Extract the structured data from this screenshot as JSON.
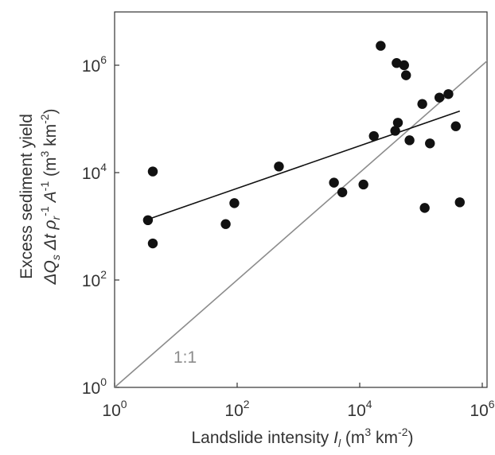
{
  "chart_data": {
    "type": "scatter",
    "xscale": "log",
    "yscale": "log",
    "xlim": [
      1,
      2000000
    ],
    "ylim": [
      1,
      10000000
    ],
    "xticks": [
      1,
      100,
      10000,
      1000000
    ],
    "yticks": [
      1,
      100,
      10000,
      1000000
    ],
    "x_tick_labels": [
      {
        "base": "10",
        "exp": "0"
      },
      {
        "base": "10",
        "exp": "2"
      },
      {
        "base": "10",
        "exp": "4"
      },
      {
        "base": "10",
        "exp": "6"
      }
    ],
    "y_tick_labels": [
      {
        "base": "10",
        "exp": "0"
      },
      {
        "base": "10",
        "exp": "2"
      },
      {
        "base": "10",
        "exp": "4"
      },
      {
        "base": "10",
        "exp": "6"
      }
    ],
    "xlabel": {
      "main": "Landslide intensity ",
      "sym": "I",
      "sub": "l",
      "units_open": " (m",
      "sup1": "3",
      "units_mid": " km",
      "sup2": "-2",
      "units_close": ")"
    },
    "ylabel_line1": "Excess sediment yield",
    "ylabel_line2": {
      "p1": "ΔQ",
      "sub1": "s",
      "p2": " Δt ρ",
      "sub2": "r",
      "sup1": "-1",
      "p3": " A",
      "sup2": "-1",
      "p4": " (m",
      "sup3": "3",
      "p5": " km",
      "sup4": "-2",
      "p6": ")"
    },
    "points": [
      {
        "x": 3.5,
        "y": 1300
      },
      {
        "x": 4.2,
        "y": 10500
      },
      {
        "x": 4.2,
        "y": 480
      },
      {
        "x": 65,
        "y": 1100
      },
      {
        "x": 90,
        "y": 2700
      },
      {
        "x": 480,
        "y": 13000
      },
      {
        "x": 3800,
        "y": 6500
      },
      {
        "x": 5200,
        "y": 4300
      },
      {
        "x": 11500,
        "y": 6000
      },
      {
        "x": 17000,
        "y": 48000
      },
      {
        "x": 22000,
        "y": 2300000
      },
      {
        "x": 38000,
        "y": 60000
      },
      {
        "x": 40000,
        "y": 1100000
      },
      {
        "x": 42000,
        "y": 85000
      },
      {
        "x": 53000,
        "y": 1000000
      },
      {
        "x": 57000,
        "y": 650000
      },
      {
        "x": 65000,
        "y": 40000
      },
      {
        "x": 105000,
        "y": 190000
      },
      {
        "x": 115000,
        "y": 2200
      },
      {
        "x": 140000,
        "y": 35000
      },
      {
        "x": 200000,
        "y": 250000
      },
      {
        "x": 280000,
        "y": 290000
      },
      {
        "x": 370000,
        "y": 73000
      },
      {
        "x": 430000,
        "y": 2800
      }
    ],
    "fit_line": {
      "x": [
        3.5,
        430000
      ],
      "y": [
        1350,
        140000
      ]
    },
    "one_to_one": {
      "x": [
        1,
        1500000
      ],
      "y": [
        1,
        1500000
      ],
      "label": "1:1"
    },
    "colors": {
      "points": "#111111",
      "fit": "#111111",
      "one_to_one": "#8c8c8c",
      "axes": "#333333"
    }
  }
}
